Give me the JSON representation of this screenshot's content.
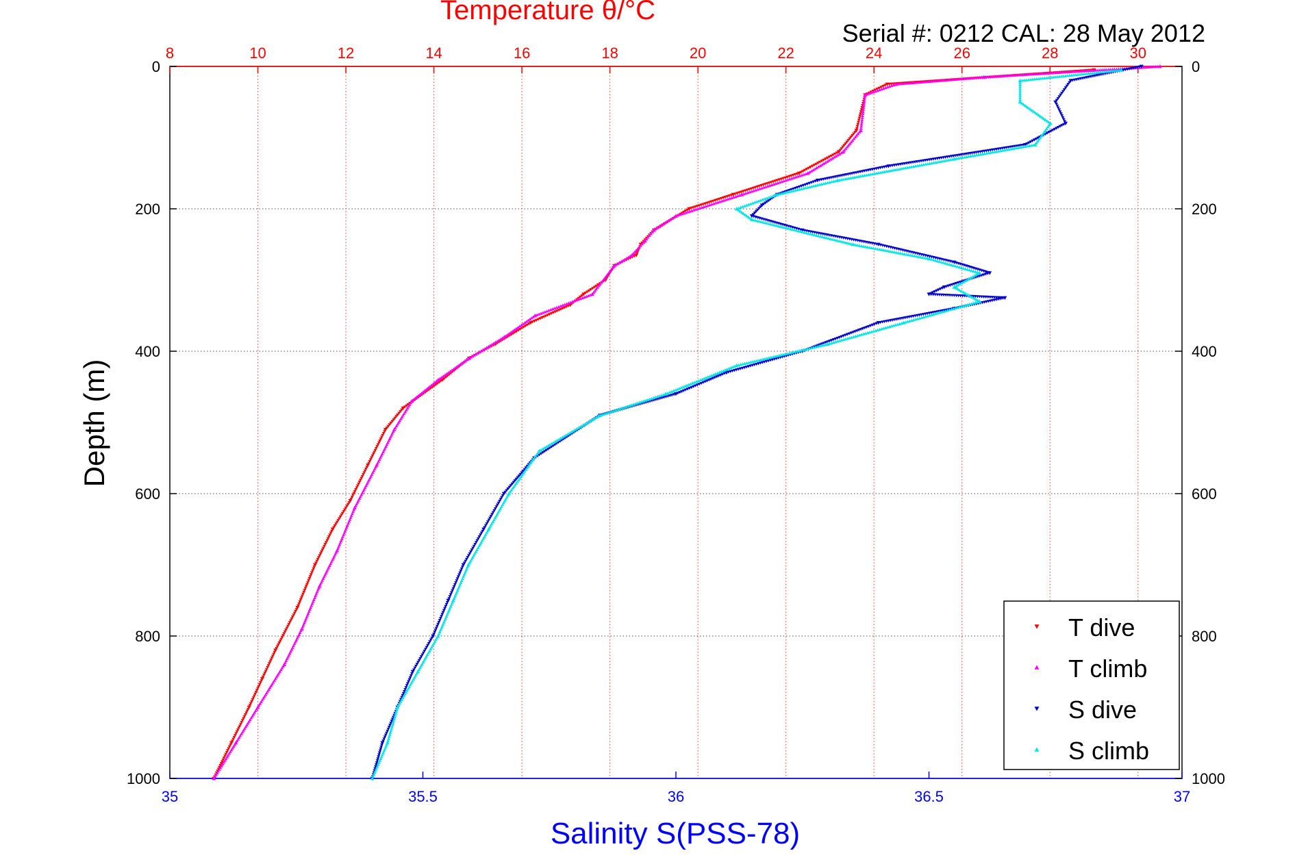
{
  "chart_data": {
    "type": "scatter",
    "title": "Temperature θ/°C",
    "subtitle": "Serial #: 0212  CAL: 28 May 2012",
    "ylabel": "Depth (m)",
    "xlabel_bottom": "Salinity S(PSS-78)",
    "xlabel_top": "Temperature θ/°C",
    "ylim": [
      0,
      1000
    ],
    "y_reversed": true,
    "y_ticks": [
      "0",
      "200",
      "400",
      "600",
      "800",
      "1000"
    ],
    "x_bottom_range": [
      35,
      37
    ],
    "x_bottom_ticks": [
      "35",
      "35.5",
      "36",
      "36.5",
      "37"
    ],
    "x_top_range": [
      8,
      31
    ],
    "x_top_ticks": [
      "8",
      "10",
      "12",
      "14",
      "16",
      "18",
      "20",
      "22",
      "24",
      "26",
      "28",
      "30"
    ],
    "grid": true,
    "legend_position": "bottom-right",
    "colors": {
      "temperature_axis": "#ff0000",
      "salinity_axis": "#0000ff",
      "t_dive": "#ff0000",
      "t_climb": "#ff00ff",
      "s_dive": "#0000cc",
      "s_climb": "#00e5e5"
    },
    "series": [
      {
        "name": "T dive",
        "axis": "temperature",
        "marker": "triangle-down",
        "points": [
          [
            29.0,
            5
          ],
          [
            24.3,
            25
          ],
          [
            23.8,
            40
          ],
          [
            23.6,
            90
          ],
          [
            23.2,
            120
          ],
          [
            22.3,
            150
          ],
          [
            20.8,
            180
          ],
          [
            19.8,
            200
          ],
          [
            19.0,
            230
          ],
          [
            18.7,
            250
          ],
          [
            18.6,
            265
          ],
          [
            18.1,
            280
          ],
          [
            17.9,
            300
          ],
          [
            17.4,
            320
          ],
          [
            17.1,
            335
          ],
          [
            16.2,
            360
          ],
          [
            15.4,
            390
          ],
          [
            14.8,
            410
          ],
          [
            14.2,
            440
          ],
          [
            13.3,
            480
          ],
          [
            12.9,
            510
          ],
          [
            12.5,
            560
          ],
          [
            12.1,
            610
          ],
          [
            11.7,
            650
          ],
          [
            11.3,
            700
          ],
          [
            10.9,
            760
          ],
          [
            10.4,
            820
          ],
          [
            10.1,
            860
          ],
          [
            9.8,
            900
          ],
          [
            9.4,
            950
          ],
          [
            9.0,
            1000
          ]
        ]
      },
      {
        "name": "T climb",
        "axis": "temperature",
        "marker": "triangle-up",
        "points": [
          [
            30.5,
            0
          ],
          [
            26.5,
            15
          ],
          [
            24.5,
            25
          ],
          [
            23.8,
            40
          ],
          [
            23.7,
            90
          ],
          [
            23.3,
            120
          ],
          [
            22.5,
            150
          ],
          [
            21.0,
            180
          ],
          [
            19.5,
            210
          ],
          [
            19.0,
            230
          ],
          [
            18.8,
            245
          ],
          [
            18.5,
            265
          ],
          [
            18.1,
            280
          ],
          [
            17.6,
            320
          ],
          [
            16.3,
            350
          ],
          [
            15.6,
            380
          ],
          [
            14.8,
            410
          ],
          [
            14.1,
            440
          ],
          [
            13.5,
            470
          ],
          [
            13.1,
            510
          ],
          [
            12.7,
            560
          ],
          [
            12.2,
            620
          ],
          [
            11.8,
            680
          ],
          [
            11.4,
            730
          ],
          [
            11.0,
            790
          ],
          [
            10.6,
            840
          ],
          [
            10.0,
            900
          ],
          [
            9.5,
            950
          ],
          [
            9.0,
            1000
          ]
        ]
      },
      {
        "name": "S dive",
        "axis": "salinity",
        "marker": "triangle-down",
        "points": [
          [
            36.92,
            0
          ],
          [
            36.78,
            20
          ],
          [
            36.75,
            50
          ],
          [
            36.77,
            80
          ],
          [
            36.69,
            110
          ],
          [
            36.42,
            140
          ],
          [
            36.28,
            160
          ],
          [
            36.2,
            180
          ],
          [
            36.17,
            195
          ],
          [
            36.15,
            210
          ],
          [
            36.25,
            230
          ],
          [
            36.4,
            250
          ],
          [
            36.55,
            275
          ],
          [
            36.62,
            290
          ],
          [
            36.53,
            310
          ],
          [
            36.5,
            320
          ],
          [
            36.65,
            325
          ],
          [
            36.55,
            340
          ],
          [
            36.4,
            360
          ],
          [
            36.25,
            400
          ],
          [
            36.1,
            430
          ],
          [
            36.0,
            460
          ],
          [
            35.85,
            490
          ],
          [
            35.72,
            550
          ],
          [
            35.66,
            600
          ],
          [
            35.62,
            650
          ],
          [
            35.58,
            700
          ],
          [
            35.55,
            750
          ],
          [
            35.52,
            800
          ],
          [
            35.48,
            850
          ],
          [
            35.45,
            900
          ],
          [
            35.42,
            950
          ],
          [
            35.4,
            1000
          ]
        ]
      },
      {
        "name": "S climb",
        "axis": "salinity",
        "marker": "triangle-up",
        "points": [
          [
            36.88,
            5
          ],
          [
            36.68,
            20
          ],
          [
            36.68,
            50
          ],
          [
            36.74,
            80
          ],
          [
            36.71,
            110
          ],
          [
            36.55,
            130
          ],
          [
            36.32,
            160
          ],
          [
            36.2,
            180
          ],
          [
            36.12,
            200
          ],
          [
            36.15,
            215
          ],
          [
            36.35,
            250
          ],
          [
            36.5,
            270
          ],
          [
            36.6,
            290
          ],
          [
            36.55,
            310
          ],
          [
            36.6,
            330
          ],
          [
            36.45,
            360
          ],
          [
            36.3,
            390
          ],
          [
            36.12,
            420
          ],
          [
            35.98,
            460
          ],
          [
            35.85,
            490
          ],
          [
            35.73,
            540
          ],
          [
            35.67,
            600
          ],
          [
            35.63,
            650
          ],
          [
            35.59,
            700
          ],
          [
            35.56,
            750
          ],
          [
            35.53,
            800
          ],
          [
            35.49,
            850
          ],
          [
            35.45,
            900
          ],
          [
            35.43,
            950
          ],
          [
            35.4,
            1000
          ]
        ]
      }
    ]
  }
}
